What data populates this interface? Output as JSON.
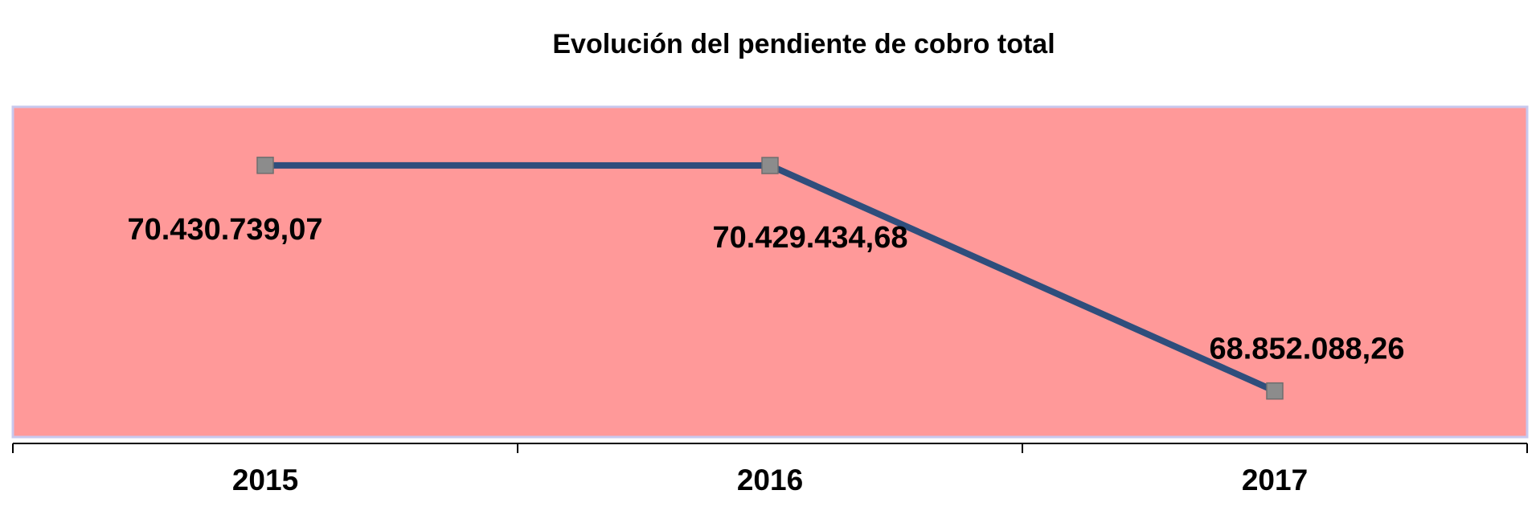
{
  "chart_data": {
    "type": "line",
    "title": "Evolución del pendiente de cobro total",
    "xlabel": "",
    "ylabel": "",
    "categories": [
      "2015",
      "2016",
      "2017"
    ],
    "series": [
      {
        "values": [
          70430739.07,
          70429434.68,
          68852088.26
        ],
        "labels": [
          "70.430.739,07",
          "70.429.434,68",
          "68.852.088,26"
        ],
        "color": "#2f4e7c",
        "marker": "square",
        "marker_color": "#8c8c8c"
      }
    ],
    "plot_background": "#ff9999",
    "plot_border": "#c8c8ee",
    "grid": false,
    "legend": "none"
  }
}
